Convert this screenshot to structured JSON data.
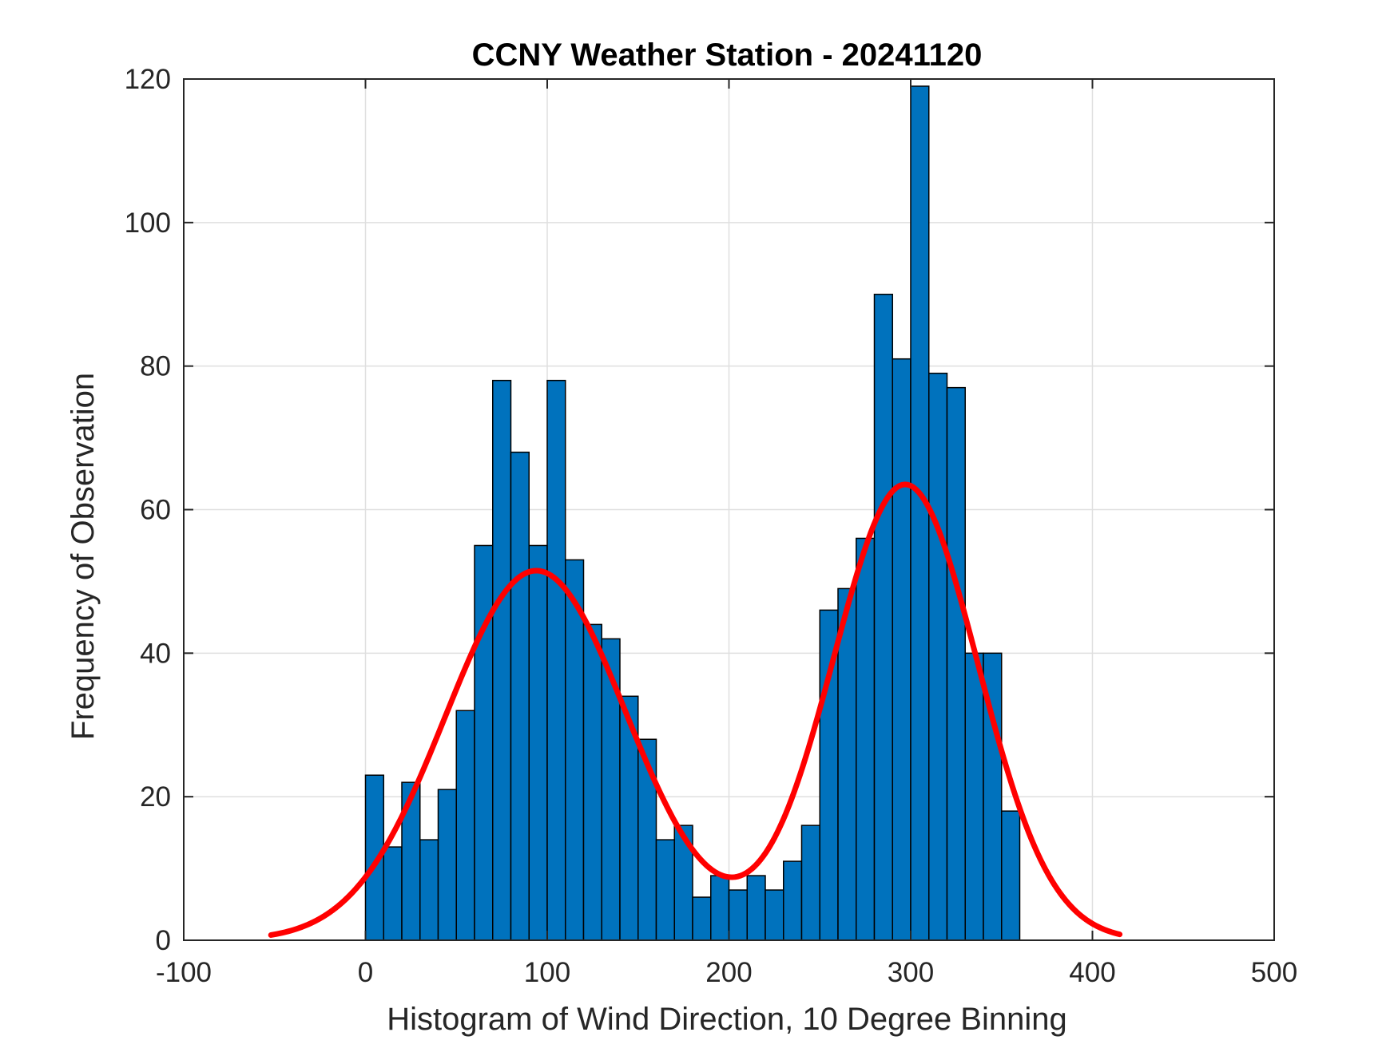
{
  "chart_data": {
    "type": "bar",
    "title": "CCNY Weather Station - 20241120",
    "xlabel": "Histogram of Wind Direction, 10 Degree Binning",
    "ylabel": "Frequency of Observation",
    "xlim": [
      -100,
      500
    ],
    "ylim": [
      0,
      120
    ],
    "grid": true,
    "xticks": [
      -100,
      0,
      100,
      200,
      300,
      400,
      500
    ],
    "yticks": [
      0,
      20,
      40,
      60,
      80,
      100,
      120
    ],
    "xtick_labels": [
      "-100",
      "0",
      "100",
      "200",
      "300",
      "400",
      "500"
    ],
    "ytick_labels": [
      "0",
      "20",
      "40",
      "60",
      "80",
      "100",
      "120"
    ],
    "bin_width": 10,
    "bin_edges_start": 0,
    "values": [
      23,
      13,
      22,
      14,
      21,
      32,
      55,
      78,
      68,
      55,
      78,
      53,
      44,
      42,
      34,
      28,
      14,
      16,
      6,
      9,
      7,
      9,
      7,
      11,
      16,
      46,
      49,
      56,
      90,
      81,
      119,
      79,
      77,
      40,
      40,
      18
    ],
    "fit_curve": {
      "type": "line",
      "name": "fitted density",
      "x_range": [
        -52,
        415
      ],
      "components": [
        {
          "amplitude": 51.5,
          "mean": 94,
          "sd": 50
        },
        {
          "amplitude": 63.5,
          "mean": 297,
          "sd": 40
        }
      ]
    },
    "colors": {
      "bar_fill": "#0072BD",
      "bar_edge": "#000000",
      "curve": "#FF0000",
      "grid": "#DFDFDF",
      "axis": "#262626"
    }
  }
}
